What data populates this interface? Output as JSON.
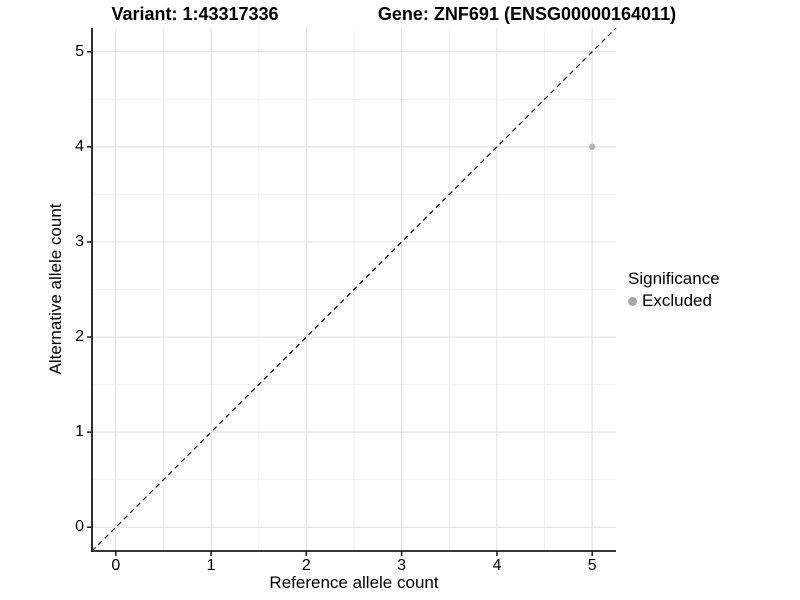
{
  "titles": {
    "variant": "Variant: 1:43317336",
    "gene": "Gene: ZNF691 (ENSG00000164011)"
  },
  "chart_data": {
    "type": "scatter",
    "xlabel": "Reference allele count",
    "ylabel": "Alternative allele count",
    "x_ticks": [
      "0",
      "1",
      "2",
      "3",
      "4",
      "5"
    ],
    "y_ticks": [
      "0",
      "1",
      "2",
      "3",
      "4",
      "5"
    ],
    "x_tick_values": [
      0,
      1,
      2,
      3,
      4,
      5
    ],
    "y_tick_values": [
      0,
      1,
      2,
      3,
      4,
      5
    ],
    "xlim": [
      -0.25,
      5.25
    ],
    "ylim": [
      -0.25,
      5.25
    ],
    "grid": {
      "major_x": [
        0,
        1,
        2,
        3,
        4,
        5
      ],
      "major_y": [
        0,
        1,
        2,
        3,
        4,
        5
      ],
      "minor_x": [
        0.5,
        1.5,
        2.5,
        3.5,
        4.5
      ],
      "minor_y": [
        0.5,
        1.5,
        2.5,
        3.5,
        4.5
      ]
    },
    "identity_line": {
      "style": "dashed",
      "from": [
        -0.25,
        -0.25
      ],
      "to": [
        5.25,
        5.25
      ],
      "color": "#000000"
    },
    "series": [
      {
        "name": "Excluded",
        "points": [
          {
            "x": 5,
            "y": 4
          }
        ],
        "color": "#b3b3b3"
      }
    ],
    "legend": {
      "title": "Significance",
      "position": "right",
      "entries": [
        {
          "label": "Excluded",
          "color": "#a8a8a8"
        }
      ]
    }
  },
  "colors": {
    "background": "#ffffff",
    "grid_major": "#e4e4e4",
    "grid_minor": "#f2f2f2",
    "axis_line": "#1a1a1a",
    "tick_mark": "#1a1a1a",
    "text": "#000000",
    "point": "#b3b3b3"
  }
}
